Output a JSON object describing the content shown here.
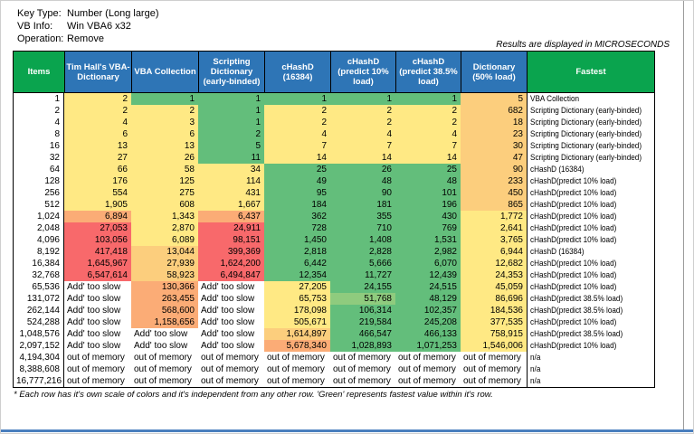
{
  "colors": {
    "header_blue": "#2E75B6",
    "header_green": "#0AA44E",
    "scale": {
      "g": "#63BE7B",
      "lg": "#8FCB7E",
      "y": "#FFE984",
      "ol": "#FCCE7D",
      "o": "#FBAC76",
      "r": "#F8696B",
      "w": "#FFFFFF"
    }
  },
  "info": {
    "rows": [
      {
        "label": "Key Type:",
        "value": "Number (Long large)"
      },
      {
        "label": "VB Info:",
        "value": "Win VBA6 x32"
      },
      {
        "label": "Operation:",
        "value": "Remove"
      }
    ]
  },
  "note": "Results are displayed in MICROSECONDS",
  "footnote": "* Each row has it's own scale of colors and it's independent from any other row. 'Green' represents fastest value within it's row.",
  "table": {
    "columns": [
      "Items",
      "Tim Hall's VBA-Dictionary",
      "VBA Collection",
      "Scripting Dictionary (early-binded)",
      "cHashD (16384)",
      "cHashD (predict 10% load)",
      "cHashD (predict 38.5% load)",
      "Dictionary (50% load)",
      "Fastest"
    ],
    "rows": [
      {
        "items": "1",
        "cells": [
          [
            "2",
            "y"
          ],
          [
            "1",
            "g"
          ],
          [
            "1",
            "g"
          ],
          [
            "1",
            "g"
          ],
          [
            "1",
            "g"
          ],
          [
            "1",
            "g"
          ],
          [
            "5",
            "ol"
          ]
        ],
        "fastest": "VBA Collection"
      },
      {
        "items": "2",
        "cells": [
          [
            "2",
            "y"
          ],
          [
            "2",
            "y"
          ],
          [
            "1",
            "g"
          ],
          [
            "2",
            "y"
          ],
          [
            "2",
            "y"
          ],
          [
            "2",
            "y"
          ],
          [
            "682",
            "ol"
          ]
        ],
        "fastest": "Scripting Dictionary (early-binded)"
      },
      {
        "items": "4",
        "cells": [
          [
            "4",
            "y"
          ],
          [
            "3",
            "y"
          ],
          [
            "1",
            "g"
          ],
          [
            "2",
            "y"
          ],
          [
            "2",
            "y"
          ],
          [
            "2",
            "y"
          ],
          [
            "18",
            "ol"
          ]
        ],
        "fastest": "Scripting Dictionary (early-binded)"
      },
      {
        "items": "8",
        "cells": [
          [
            "6",
            "y"
          ],
          [
            "6",
            "y"
          ],
          [
            "2",
            "g"
          ],
          [
            "4",
            "y"
          ],
          [
            "4",
            "y"
          ],
          [
            "4",
            "y"
          ],
          [
            "23",
            "ol"
          ]
        ],
        "fastest": "Scripting Dictionary (early-binded)"
      },
      {
        "items": "16",
        "cells": [
          [
            "13",
            "y"
          ],
          [
            "13",
            "y"
          ],
          [
            "5",
            "g"
          ],
          [
            "7",
            "y"
          ],
          [
            "7",
            "y"
          ],
          [
            "7",
            "y"
          ],
          [
            "30",
            "ol"
          ]
        ],
        "fastest": "Scripting Dictionary (early-binded)"
      },
      {
        "items": "32",
        "cells": [
          [
            "27",
            "y"
          ],
          [
            "26",
            "y"
          ],
          [
            "11",
            "g"
          ],
          [
            "14",
            "y"
          ],
          [
            "14",
            "y"
          ],
          [
            "14",
            "y"
          ],
          [
            "47",
            "ol"
          ]
        ],
        "fastest": "Scripting Dictionary (early-binded)"
      },
      {
        "items": "64",
        "cells": [
          [
            "66",
            "y"
          ],
          [
            "58",
            "y"
          ],
          [
            "34",
            "y"
          ],
          [
            "25",
            "g"
          ],
          [
            "26",
            "g"
          ],
          [
            "25",
            "g"
          ],
          [
            "90",
            "ol"
          ]
        ],
        "fastest": "cHashD (16384)"
      },
      {
        "items": "128",
        "cells": [
          [
            "176",
            "y"
          ],
          [
            "125",
            "y"
          ],
          [
            "114",
            "y"
          ],
          [
            "49",
            "g"
          ],
          [
            "48",
            "g"
          ],
          [
            "48",
            "g"
          ],
          [
            "233",
            "ol"
          ]
        ],
        "fastest": "cHashD(predict 10% load)"
      },
      {
        "items": "256",
        "cells": [
          [
            "554",
            "y"
          ],
          [
            "275",
            "y"
          ],
          [
            "431",
            "y"
          ],
          [
            "95",
            "g"
          ],
          [
            "90",
            "g"
          ],
          [
            "101",
            "g"
          ],
          [
            "450",
            "ol"
          ]
        ],
        "fastest": "cHashD(predict 10% load)"
      },
      {
        "items": "512",
        "cells": [
          [
            "1,905",
            "y"
          ],
          [
            "608",
            "y"
          ],
          [
            "1,667",
            "y"
          ],
          [
            "184",
            "g"
          ],
          [
            "181",
            "g"
          ],
          [
            "196",
            "g"
          ],
          [
            "865",
            "ol"
          ]
        ],
        "fastest": "cHashD(predict 10% load)"
      },
      {
        "items": "1,024",
        "cells": [
          [
            "6,894",
            "o"
          ],
          [
            "1,343",
            "y"
          ],
          [
            "6,437",
            "o"
          ],
          [
            "362",
            "g"
          ],
          [
            "355",
            "g"
          ],
          [
            "430",
            "g"
          ],
          [
            "1,772",
            "y"
          ]
        ],
        "fastest": "cHashD(predict 10% load)"
      },
      {
        "items": "2,048",
        "cells": [
          [
            "27,053",
            "r"
          ],
          [
            "2,870",
            "y"
          ],
          [
            "24,911",
            "r"
          ],
          [
            "728",
            "g"
          ],
          [
            "710",
            "g"
          ],
          [
            "769",
            "g"
          ],
          [
            "2,641",
            "y"
          ]
        ],
        "fastest": "cHashD(predict 10% load)"
      },
      {
        "items": "4,096",
        "cells": [
          [
            "103,056",
            "r"
          ],
          [
            "6,089",
            "y"
          ],
          [
            "98,151",
            "r"
          ],
          [
            "1,450",
            "g"
          ],
          [
            "1,408",
            "g"
          ],
          [
            "1,531",
            "g"
          ],
          [
            "3,765",
            "y"
          ]
        ],
        "fastest": "cHashD(predict 10% load)"
      },
      {
        "items": "8,192",
        "cells": [
          [
            "417,418",
            "r"
          ],
          [
            "13,044",
            "ol"
          ],
          [
            "399,369",
            "r"
          ],
          [
            "2,818",
            "g"
          ],
          [
            "2,828",
            "g"
          ],
          [
            "2,982",
            "g"
          ],
          [
            "6,944",
            "y"
          ]
        ],
        "fastest": "cHashD (16384)"
      },
      {
        "items": "16,384",
        "cells": [
          [
            "1,645,967",
            "r"
          ],
          [
            "27,939",
            "ol"
          ],
          [
            "1,624,200",
            "r"
          ],
          [
            "6,442",
            "g"
          ],
          [
            "5,666",
            "g"
          ],
          [
            "6,070",
            "g"
          ],
          [
            "12,682",
            "y"
          ]
        ],
        "fastest": "cHashD(predict 10% load)"
      },
      {
        "items": "32,768",
        "cells": [
          [
            "6,547,614",
            "r"
          ],
          [
            "58,923",
            "ol"
          ],
          [
            "6,494,847",
            "r"
          ],
          [
            "12,354",
            "g"
          ],
          [
            "11,727",
            "g"
          ],
          [
            "12,439",
            "g"
          ],
          [
            "24,353",
            "y"
          ]
        ],
        "fastest": "cHashD(predict 10% load)"
      },
      {
        "items": "65,536",
        "cells": [
          [
            "Add' too slow",
            "w"
          ],
          [
            "130,366",
            "o"
          ],
          [
            "Add' too slow",
            "w"
          ],
          [
            "27,205",
            "y"
          ],
          [
            "24,155",
            "g"
          ],
          [
            "24,515",
            "g"
          ],
          [
            "45,059",
            "y"
          ]
        ],
        "fastest": "cHashD(predict 10% load)"
      },
      {
        "items": "131,072",
        "cells": [
          [
            "Add' too slow",
            "w"
          ],
          [
            "263,455",
            "o"
          ],
          [
            "Add' too slow",
            "w"
          ],
          [
            "65,753",
            "y"
          ],
          [
            "51,768",
            "lg"
          ],
          [
            "48,129",
            "g"
          ],
          [
            "86,696",
            "y"
          ]
        ],
        "fastest": "cHashD(predict 38.5% load)"
      },
      {
        "items": "262,144",
        "cells": [
          [
            "Add' too slow",
            "w"
          ],
          [
            "568,600",
            "o"
          ],
          [
            "Add' too slow",
            "w"
          ],
          [
            "178,098",
            "y"
          ],
          [
            "106,314",
            "g"
          ],
          [
            "102,357",
            "g"
          ],
          [
            "184,536",
            "y"
          ]
        ],
        "fastest": "cHashD(predict 38.5% load)"
      },
      {
        "items": "524,288",
        "cells": [
          [
            "Add' too slow",
            "w"
          ],
          [
            "1,158,656",
            "o"
          ],
          [
            "Add' too slow",
            "w"
          ],
          [
            "505,671",
            "y"
          ],
          [
            "219,584",
            "g"
          ],
          [
            "245,208",
            "g"
          ],
          [
            "377,535",
            "y"
          ]
        ],
        "fastest": "cHashD(predict 10% load)"
      },
      {
        "items": "1,048,576",
        "cells": [
          [
            "Add' too slow",
            "w"
          ],
          [
            "Add' too slow",
            "w"
          ],
          [
            "Add' too slow",
            "w"
          ],
          [
            "1,614,897",
            "ol"
          ],
          [
            "466,547",
            "g"
          ],
          [
            "466,133",
            "g"
          ],
          [
            "758,915",
            "y"
          ]
        ],
        "fastest": "cHashD(predict 38.5% load)"
      },
      {
        "items": "2,097,152",
        "cells": [
          [
            "Add' too slow",
            "w"
          ],
          [
            "Add' too slow",
            "w"
          ],
          [
            "Add' too slow",
            "w"
          ],
          [
            "5,678,340",
            "o"
          ],
          [
            "1,028,893",
            "g"
          ],
          [
            "1,071,253",
            "g"
          ],
          [
            "1,546,006",
            "y"
          ]
        ],
        "fastest": "cHashD(predict 10% load)"
      },
      {
        "items": "4,194,304",
        "cells": [
          [
            "out of memory",
            "w"
          ],
          [
            "out of memory",
            "w"
          ],
          [
            "out of memory",
            "w"
          ],
          [
            "out of memory",
            "w"
          ],
          [
            "out of memory",
            "w"
          ],
          [
            "out of memory",
            "w"
          ],
          [
            "out of memory",
            "w"
          ]
        ],
        "fastest": "n/a"
      },
      {
        "items": "8,388,608",
        "cells": [
          [
            "out of memory",
            "w"
          ],
          [
            "out of memory",
            "w"
          ],
          [
            "out of memory",
            "w"
          ],
          [
            "out of memory",
            "w"
          ],
          [
            "out of memory",
            "w"
          ],
          [
            "out of memory",
            "w"
          ],
          [
            "out of memory",
            "w"
          ]
        ],
        "fastest": "n/a"
      },
      {
        "items": "16,777,216",
        "cells": [
          [
            "out of memory",
            "w"
          ],
          [
            "out of memory",
            "w"
          ],
          [
            "out of memory",
            "w"
          ],
          [
            "out of memory",
            "w"
          ],
          [
            "out of memory",
            "w"
          ],
          [
            "out of memory",
            "w"
          ],
          [
            "out of memory",
            "w"
          ]
        ],
        "fastest": "n/a"
      }
    ]
  }
}
